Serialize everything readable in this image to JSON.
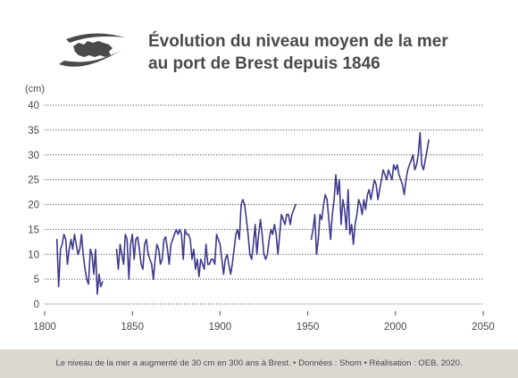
{
  "header": {
    "title_line1": "Évolution du niveau moyen de la mer",
    "title_line2": "au port de Brest depuis 1846"
  },
  "footer": {
    "caption": "Le niveau de la mer a augmenté de 30 cm en 300 ans à Brest. • Données : Shom • Réalisation : OEB, 2020."
  },
  "logo": {
    "icon": "brittany-map-logo",
    "color": "#4a4a4a"
  },
  "chart_data": {
    "type": "line",
    "title": "",
    "unit_label": "(cm)",
    "xlim": [
      1800,
      2050
    ],
    "ylim": [
      0,
      40
    ],
    "x_ticks": [
      1800,
      1850,
      1900,
      1950,
      2000,
      2050
    ],
    "y_ticks": [
      0,
      5,
      10,
      15,
      20,
      25,
      30,
      35,
      40
    ],
    "grid": "horizontal dotted",
    "line_color": "#3e3a8c",
    "series": [
      {
        "segments": [
          [
            [
              1807,
              13
            ],
            [
              1808,
              3.5
            ],
            [
              1809,
              11
            ],
            [
              1810,
              12
            ],
            [
              1811,
              14
            ],
            [
              1812,
              13
            ],
            [
              1813,
              8
            ],
            [
              1814,
              11
            ],
            [
              1815,
              13
            ],
            [
              1816,
              11
            ],
            [
              1817,
              14
            ],
            [
              1818,
              12
            ],
            [
              1819,
              10
            ],
            [
              1820,
              11
            ],
            [
              1821,
              14
            ],
            [
              1822,
              10
            ],
            [
              1823,
              7
            ],
            [
              1824,
              5
            ],
            [
              1825,
              4
            ],
            [
              1826,
              11
            ],
            [
              1827,
              10
            ],
            [
              1828,
              6
            ],
            [
              1829,
              11
            ],
            [
              1830,
              2
            ],
            [
              1831,
              6
            ],
            [
              1832,
              3.5
            ],
            [
              1833,
              4.5
            ]
          ],
          [
            [
              1841,
              11
            ],
            [
              1842,
              7
            ],
            [
              1843,
              12
            ],
            [
              1844,
              10
            ],
            [
              1845,
              8
            ],
            [
              1846,
              14
            ],
            [
              1847,
              13
            ],
            [
              1848,
              5
            ],
            [
              1849,
              12
            ],
            [
              1850,
              14
            ],
            [
              1851,
              9
            ],
            [
              1852,
              13
            ],
            [
              1853,
              13.5
            ],
            [
              1854,
              11
            ],
            [
              1855,
              8
            ],
            [
              1856,
              7
            ],
            [
              1857,
              12
            ],
            [
              1858,
              13
            ],
            [
              1859,
              10
            ],
            [
              1860,
              9
            ],
            [
              1861,
              8
            ],
            [
              1862,
              5
            ],
            [
              1863,
              9
            ],
            [
              1864,
              12
            ],
            [
              1865,
              11
            ],
            [
              1866,
              8
            ],
            [
              1867,
              9
            ],
            [
              1868,
              13
            ],
            [
              1869,
              13.5
            ],
            [
              1870,
              11
            ],
            [
              1871,
              8
            ],
            [
              1872,
              12
            ],
            [
              1873,
              13
            ],
            [
              1874,
              14
            ],
            [
              1875,
              15
            ],
            [
              1876,
              14
            ],
            [
              1877,
              15
            ],
            [
              1878,
              14
            ],
            [
              1879,
              9
            ],
            [
              1880,
              15
            ],
            [
              1881,
              14
            ],
            [
              1882,
              14
            ],
            [
              1883,
              13
            ],
            [
              1884,
              9
            ],
            [
              1885,
              11
            ],
            [
              1886,
              7
            ],
            [
              1887,
              9
            ],
            [
              1888,
              5.5
            ],
            [
              1889,
              9
            ],
            [
              1890,
              8
            ],
            [
              1891,
              7
            ],
            [
              1892,
              12
            ],
            [
              1893,
              8
            ],
            [
              1894,
              8
            ],
            [
              1895,
              9
            ],
            [
              1896,
              9
            ],
            [
              1897,
              8
            ],
            [
              1898,
              14
            ],
            [
              1899,
              13
            ],
            [
              1900,
              12
            ],
            [
              1901,
              9
            ],
            [
              1902,
              6
            ],
            [
              1903,
              9
            ],
            [
              1904,
              10
            ],
            [
              1905,
              8
            ],
            [
              1906,
              6
            ],
            [
              1907,
              8
            ],
            [
              1908,
              11
            ],
            [
              1909,
              14
            ],
            [
              1910,
              15
            ],
            [
              1911,
              13
            ],
            [
              1912,
              20
            ],
            [
              1913,
              21
            ],
            [
              1914,
              20
            ],
            [
              1915,
              17
            ],
            [
              1916,
              14
            ],
            [
              1917,
              10
            ],
            [
              1918,
              9
            ],
            [
              1919,
              12
            ],
            [
              1920,
              16
            ],
            [
              1921,
              10
            ],
            [
              1922,
              14
            ],
            [
              1923,
              17
            ],
            [
              1924,
              14
            ],
            [
              1925,
              10
            ],
            [
              1926,
              9
            ],
            [
              1927,
              10
            ],
            [
              1928,
              13
            ],
            [
              1929,
              15
            ],
            [
              1930,
              14
            ],
            [
              1931,
              16
            ],
            [
              1932,
              14
            ],
            [
              1933,
              10
            ],
            [
              1934,
              14
            ],
            [
              1935,
              18
            ],
            [
              1936,
              17
            ],
            [
              1937,
              16
            ],
            [
              1938,
              18
            ],
            [
              1939,
              18
            ],
            [
              1940,
              16
            ],
            [
              1941,
              18
            ],
            [
              1942,
              19
            ],
            [
              1943,
              20
            ]
          ],
          [
            [
              1952,
              13
            ],
            [
              1953,
              15
            ],
            [
              1954,
              18
            ],
            [
              1955,
              10
            ],
            [
              1956,
              13
            ],
            [
              1957,
              18
            ],
            [
              1958,
              17
            ],
            [
              1959,
              20
            ],
            [
              1960,
              22
            ],
            [
              1961,
              21
            ],
            [
              1962,
              17
            ],
            [
              1963,
              13
            ],
            [
              1964,
              18
            ],
            [
              1965,
              21
            ],
            [
              1966,
              26
            ],
            [
              1967,
              22
            ],
            [
              1968,
              25
            ],
            [
              1969,
              16
            ],
            [
              1970,
              21
            ],
            [
              1971,
              19
            ],
            [
              1972,
              15
            ],
            [
              1973,
              23
            ],
            [
              1974,
              14
            ],
            [
              1975,
              16
            ],
            [
              1976,
              12
            ],
            [
              1977,
              16
            ],
            [
              1978,
              18
            ],
            [
              1979,
              21
            ],
            [
              1980,
              20
            ],
            [
              1981,
              18
            ],
            [
              1982,
              21
            ],
            [
              1983,
              19
            ],
            [
              1984,
              22
            ],
            [
              1985,
              23
            ],
            [
              1986,
              21
            ],
            [
              1987,
              23
            ],
            [
              1988,
              25
            ],
            [
              1989,
              24
            ],
            [
              1990,
              21
            ],
            [
              1991,
              23
            ],
            [
              1992,
              25
            ],
            [
              1993,
              27
            ],
            [
              1994,
              26
            ],
            [
              1995,
              25
            ],
            [
              1996,
              27
            ],
            [
              1997,
              26
            ],
            [
              1998,
              25
            ],
            [
              1999,
              28
            ],
            [
              2000,
              27
            ],
            [
              2001,
              28
            ],
            [
              2002,
              26
            ],
            [
              2003,
              25
            ],
            [
              2004,
              24
            ],
            [
              2005,
              22
            ],
            [
              2006,
              25
            ],
            [
              2007,
              27
            ],
            [
              2008,
              28
            ],
            [
              2009,
              29
            ],
            [
              2010,
              30
            ],
            [
              2011,
              27
            ],
            [
              2012,
              28
            ],
            [
              2013,
              30
            ],
            [
              2014,
              34.5
            ],
            [
              2015,
              28
            ],
            [
              2016,
              27
            ],
            [
              2017,
              29
            ],
            [
              2018,
              31
            ],
            [
              2019,
              33
            ]
          ]
        ]
      }
    ]
  }
}
